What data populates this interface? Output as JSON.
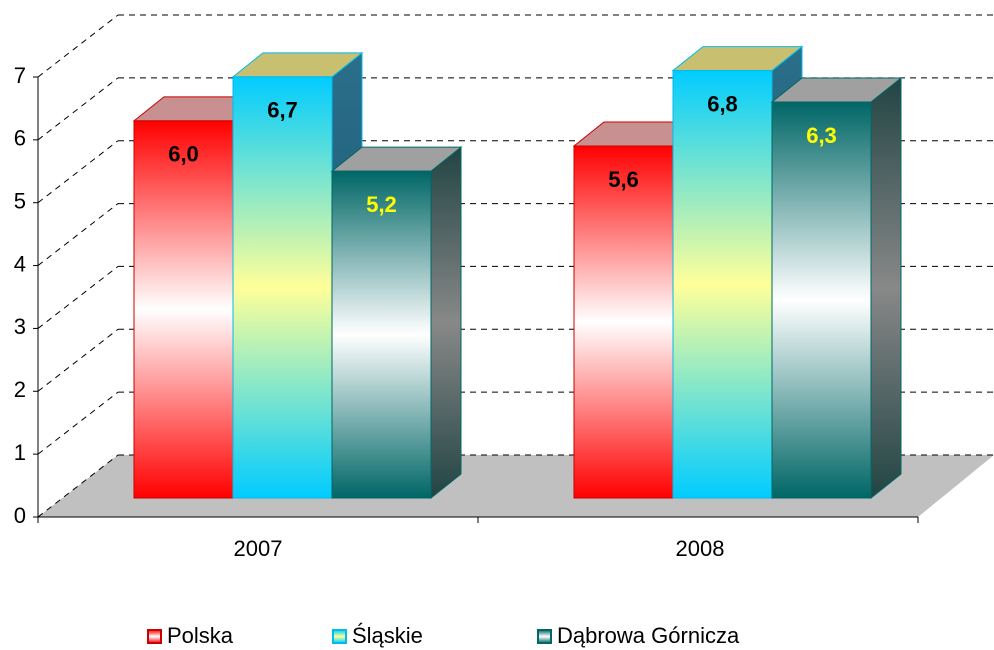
{
  "chart_data": {
    "type": "bar3d",
    "categories": [
      "2007",
      "2008"
    ],
    "series": [
      {
        "name": "Polska",
        "color": "#ff0000",
        "values": [
          6.0,
          5.6
        ],
        "value_labels": [
          "6,0",
          "5,6"
        ],
        "label_color": "#000000"
      },
      {
        "name": "Śląskie",
        "color": "#00ccff",
        "values": [
          6.7,
          6.8
        ],
        "value_labels": [
          "6,7",
          "6,8"
        ],
        "label_color": "#000000"
      },
      {
        "name": "Dąbrowa Górnicza",
        "color": "#008080",
        "values": [
          5.2,
          6.3
        ],
        "value_labels": [
          "5,2",
          "6,3"
        ],
        "label_color": "#ffff00"
      }
    ],
    "ylim": [
      0,
      7
    ],
    "yticks": [
      0,
      1,
      2,
      3,
      4,
      5,
      6,
      7
    ],
    "grid": true,
    "legend": "bottom"
  }
}
